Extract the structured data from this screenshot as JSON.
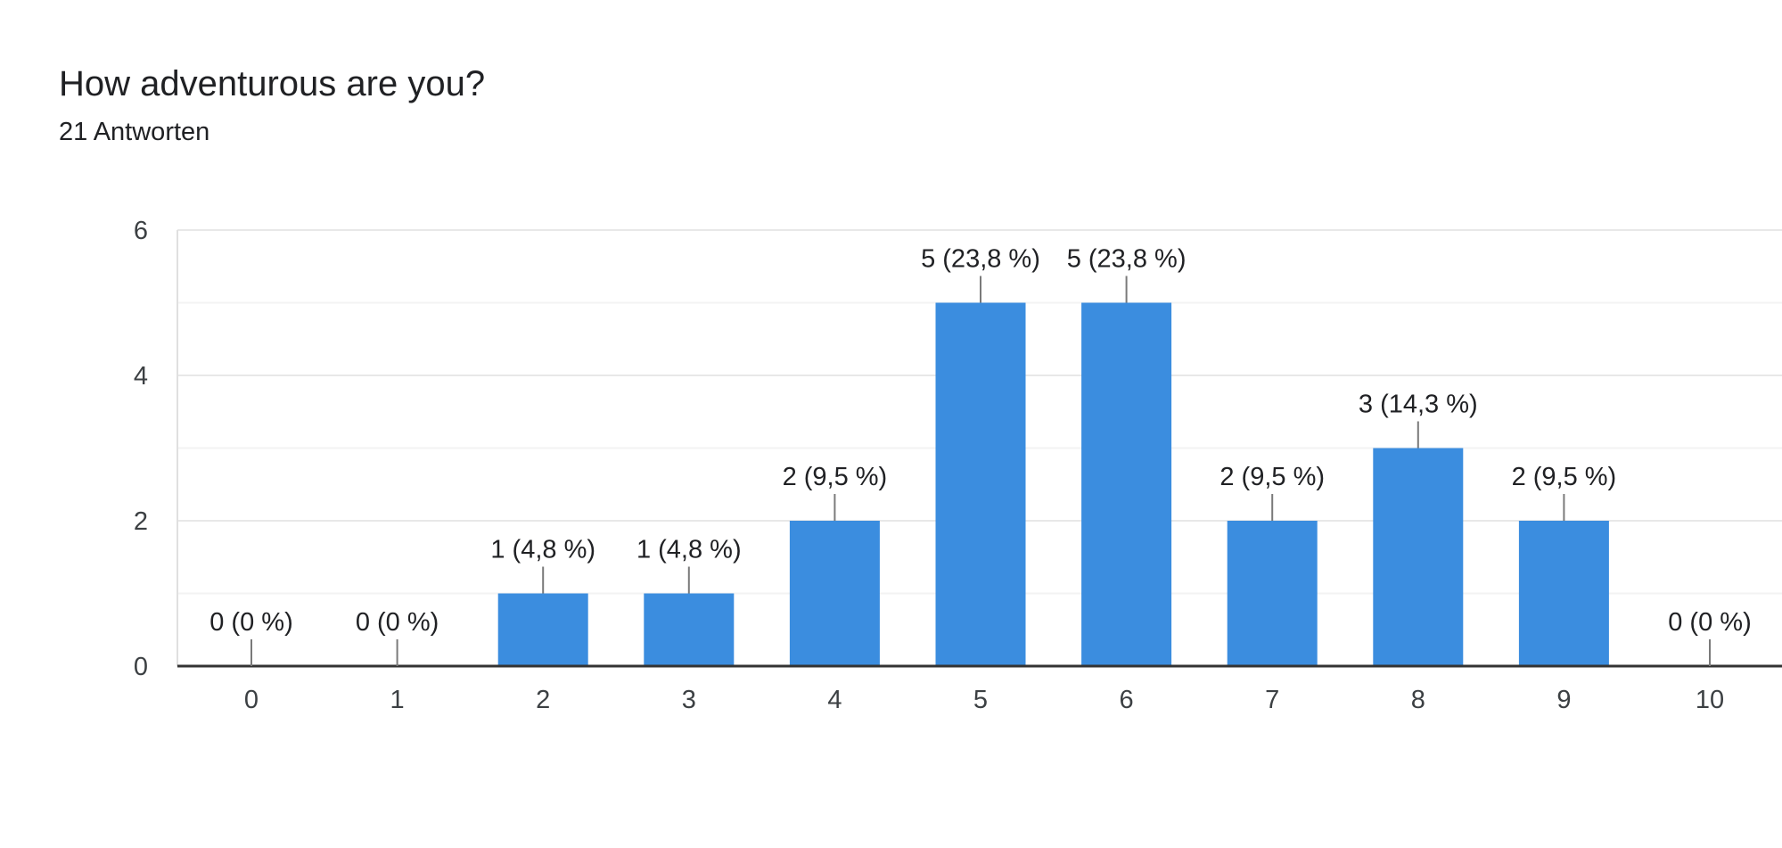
{
  "header": {
    "title": "How adventurous are you?",
    "response_count": "21 Antworten"
  },
  "chart_data": {
    "type": "bar",
    "categories": [
      "0",
      "1",
      "2",
      "3",
      "4",
      "5",
      "6",
      "7",
      "8",
      "9",
      "10"
    ],
    "values": [
      0,
      0,
      1,
      1,
      2,
      5,
      5,
      2,
      3,
      2,
      0
    ],
    "data_labels": [
      "0 (0 %)",
      "0 (0 %)",
      "1 (4,8 %)",
      "1 (4,8 %)",
      "2 (9,5 %)",
      "5 (23,8 %)",
      "5 (23,8 %)",
      "2 (9,5 %)",
      "3 (14,3 %)",
      "2 (9,5 %)",
      "0 (0 %)"
    ],
    "y_ticks": [
      "0",
      "2",
      "4",
      "6"
    ],
    "ylim": [
      0,
      6
    ],
    "minor_gridlines": [
      1,
      3,
      5
    ],
    "bar_color": "#3b8ddf",
    "grid": true,
    "legend": "none"
  }
}
